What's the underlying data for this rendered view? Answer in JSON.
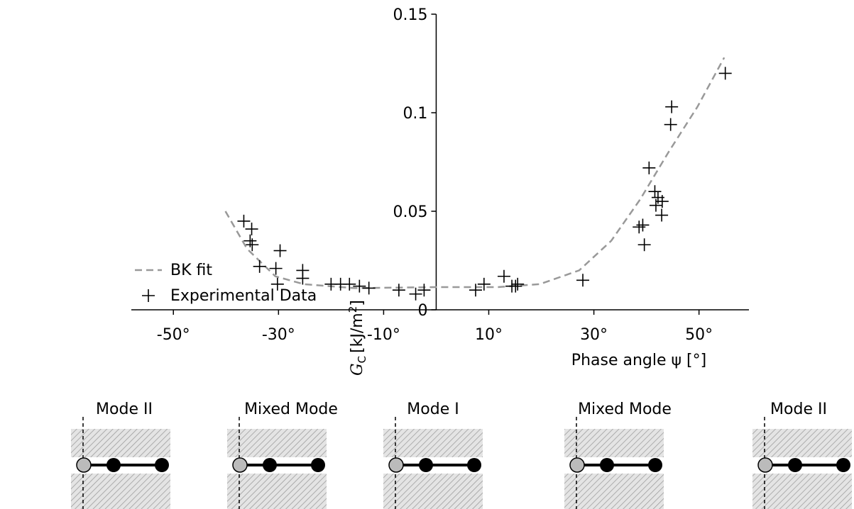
{
  "chart_data": {
    "type": "scatter",
    "ylabel": {
      "symbol": "G",
      "subscript": "C",
      "unit": "[kJ/m",
      "power": "2",
      "close": "]"
    },
    "xlabel": "Phase angle  ψ [°]",
    "xlim": [
      -58,
      59.5
    ],
    "ylim": [
      0,
      0.15
    ],
    "xticks": [
      {
        "value": -50,
        "label": "-50°"
      },
      {
        "value": -30,
        "label": "-30°"
      },
      {
        "value": -10,
        "label": "-10°"
      },
      {
        "value": 10,
        "label": "10°"
      },
      {
        "value": 30,
        "label": "30°"
      },
      {
        "value": 50,
        "label": "50°"
      }
    ],
    "yticks": [
      0,
      0.05,
      0.1,
      0.15
    ],
    "series": [
      {
        "name": "BK fit",
        "color": "#999999",
        "style": "dashed",
        "x": [
          -40.1,
          -36,
          -30.6,
          -25.2,
          -15.6,
          0,
          11.6,
          19.7,
          27.2,
          33.3,
          38.8,
          44.2,
          49.7,
          54.8
        ],
        "values": [
          0.05,
          0.031,
          0.017,
          0.013,
          0.011,
          0.0115,
          0.0115,
          0.013,
          0.02,
          0.035,
          0.056,
          0.08,
          0.103,
          0.128
        ]
      },
      {
        "name": "Experimental Data",
        "color": "#000000",
        "style": "plus",
        "x": [
          -36.6,
          -35.1,
          -35.4,
          -35.0,
          -33.6,
          -30.5,
          -29.7,
          -30.2,
          -25.4,
          -25.4,
          -20.0,
          -18.2,
          -16.5,
          -14.6,
          -12.8,
          -7.1,
          -3.9,
          -2.3,
          7.5,
          9.1,
          12.9,
          14.4,
          15.1,
          15.5,
          27.9,
          38.6,
          39.6,
          39.3,
          40.5,
          41.6,
          41.8,
          42.2,
          42.9,
          43.0,
          44.8,
          44.6,
          55.0
        ],
        "values": [
          0.045,
          0.041,
          0.035,
          0.033,
          0.022,
          0.021,
          0.03,
          0.013,
          0.02,
          0.016,
          0.013,
          0.013,
          0.013,
          0.012,
          0.011,
          0.01,
          0.008,
          0.01,
          0.01,
          0.013,
          0.017,
          0.012,
          0.012,
          0.013,
          0.015,
          0.042,
          0.033,
          0.043,
          0.072,
          0.06,
          0.053,
          0.057,
          0.048,
          0.055,
          0.103,
          0.094,
          0.12
        ]
      }
    ]
  },
  "diagrams": [
    {
      "label": "Mode II"
    },
    {
      "label": "Mixed Mode"
    },
    {
      "label": "Mode I"
    },
    {
      "label": "Mixed Mode"
    },
    {
      "label": "Mode II"
    }
  ]
}
